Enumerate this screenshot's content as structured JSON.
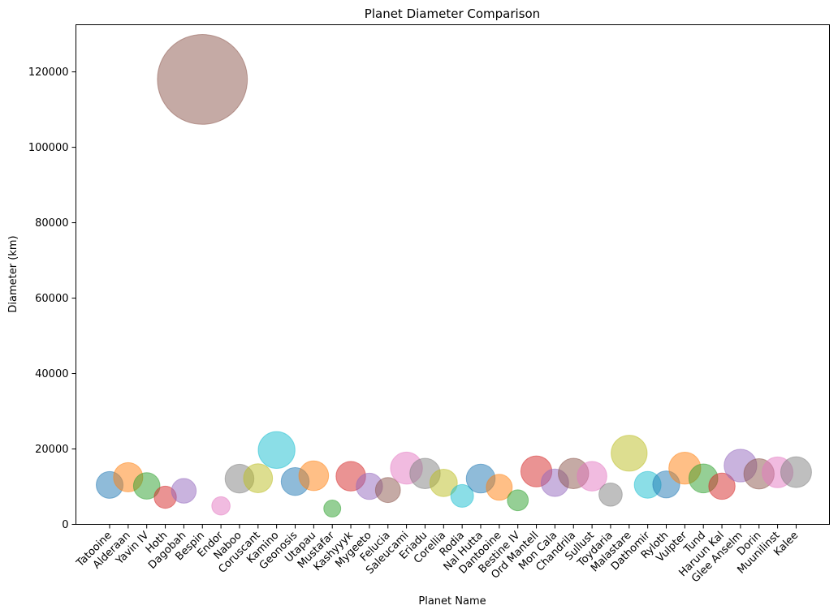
{
  "chart_data": {
    "type": "scatter",
    "title": "Planet Diameter Comparison",
    "xlabel": "Planet Name",
    "ylabel": "Diameter (km)",
    "ylim": [
      0,
      132500
    ],
    "yticks": [
      0,
      20000,
      40000,
      60000,
      80000,
      100000,
      120000
    ],
    "grid": false,
    "legend": "none",
    "marker_alpha": 0.5,
    "marker_size_encodes": "diameter",
    "palette": [
      "#1f77b4",
      "#ff7f0e",
      "#2ca02c",
      "#d62728",
      "#9467bd",
      "#8c564b",
      "#e377c2",
      "#7f7f7f",
      "#bcbd22",
      "#17becf"
    ],
    "categories": [
      "Tatooine",
      "Alderaan",
      "Yavin IV",
      "Hoth",
      "Dagobah",
      "Bespin",
      "Endor",
      "Naboo",
      "Coruscant",
      "Kamino",
      "Geonosis",
      "Utapau",
      "Mustafar",
      "Kashyyyk",
      "Mygeeto",
      "Felucia",
      "Saleucami",
      "Eriadu",
      "Corellia",
      "Rodia",
      "Nal Hutta",
      "Dantooine",
      "Bestine IV",
      "Ord Mantell",
      "Mon Cala",
      "Chandrila",
      "Sullust",
      "Toydaria",
      "Malastare",
      "Dathomir",
      "Ryloth",
      "Vulpter",
      "Tund",
      "Haruun Kal",
      "Glee Anselm",
      "Dorin",
      "Muunilinst",
      "Kalee"
    ],
    "values": [
      10465,
      12500,
      10200,
      7200,
      8900,
      118000,
      4900,
      12120,
      12240,
      19720,
      11370,
      12900,
      4200,
      12765,
      10088,
      9100,
      14920,
      13490,
      11000,
      7549,
      12150,
      9830,
      6400,
      14050,
      11030,
      13500,
      12780,
      7900,
      18880,
      10480,
      10600,
      14900,
      12190,
      10120,
      15600,
      13400,
      13800,
      13850
    ]
  }
}
